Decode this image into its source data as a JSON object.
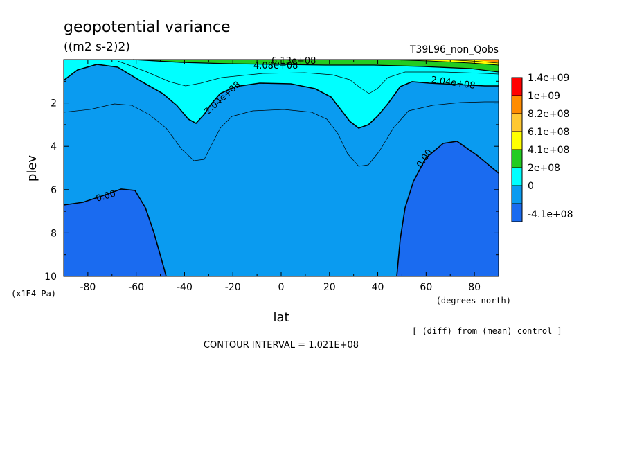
{
  "chart_data": {
    "type": "contour",
    "title": "geopotential variance",
    "units": "((m2 s-2)2)",
    "run_label": "T39L96_non_Qobs",
    "xlabel": "lat",
    "xunits": "(degrees_north)",
    "ylabel": "plev",
    "yunits": "(x1E4 Pa)",
    "xlim": [
      -90,
      90
    ],
    "ylim": [
      10,
      0
    ],
    "x_ticks": [
      "-80",
      "-60",
      "-40",
      "-20",
      "0",
      "20",
      "40",
      "60",
      "80"
    ],
    "x_tick_values": [
      -80,
      -60,
      -40,
      -20,
      0,
      20,
      40,
      60,
      80
    ],
    "y_ticks": [
      "2",
      "4",
      "6",
      "8",
      "10"
    ],
    "y_tick_values": [
      2,
      4,
      6,
      8,
      10
    ],
    "contour_interval_text": "CONTOUR INTERVAL = 1.021E+08",
    "note": "[ (diff) from (mean) control ]",
    "colorbar": {
      "labels": [
        "1.4e+09",
        "1e+09",
        "8.2e+08",
        "6.1e+08",
        "4.1e+08",
        "2e+08",
        "0",
        "-4.1e+08"
      ],
      "colors": [
        "#ff0000",
        "#ff8c00",
        "#ffc832",
        "#ffff00",
        "#22cc22",
        "#00ffff",
        "#0a9bf0",
        "#1a6bf0"
      ]
    },
    "contour_labels": [
      "6.13e+08",
      "4.08e+08",
      "2.04e+08",
      "2.04e+08",
      "0.00",
      "0.00"
    ],
    "fill_colors": {
      "negative": "#1a6bf0",
      "low": "#0a9bf0",
      "mid": "#00ffff",
      "high": "#22cc22",
      "higher": "#ffff00",
      "top": "#ff8c00"
    }
  }
}
